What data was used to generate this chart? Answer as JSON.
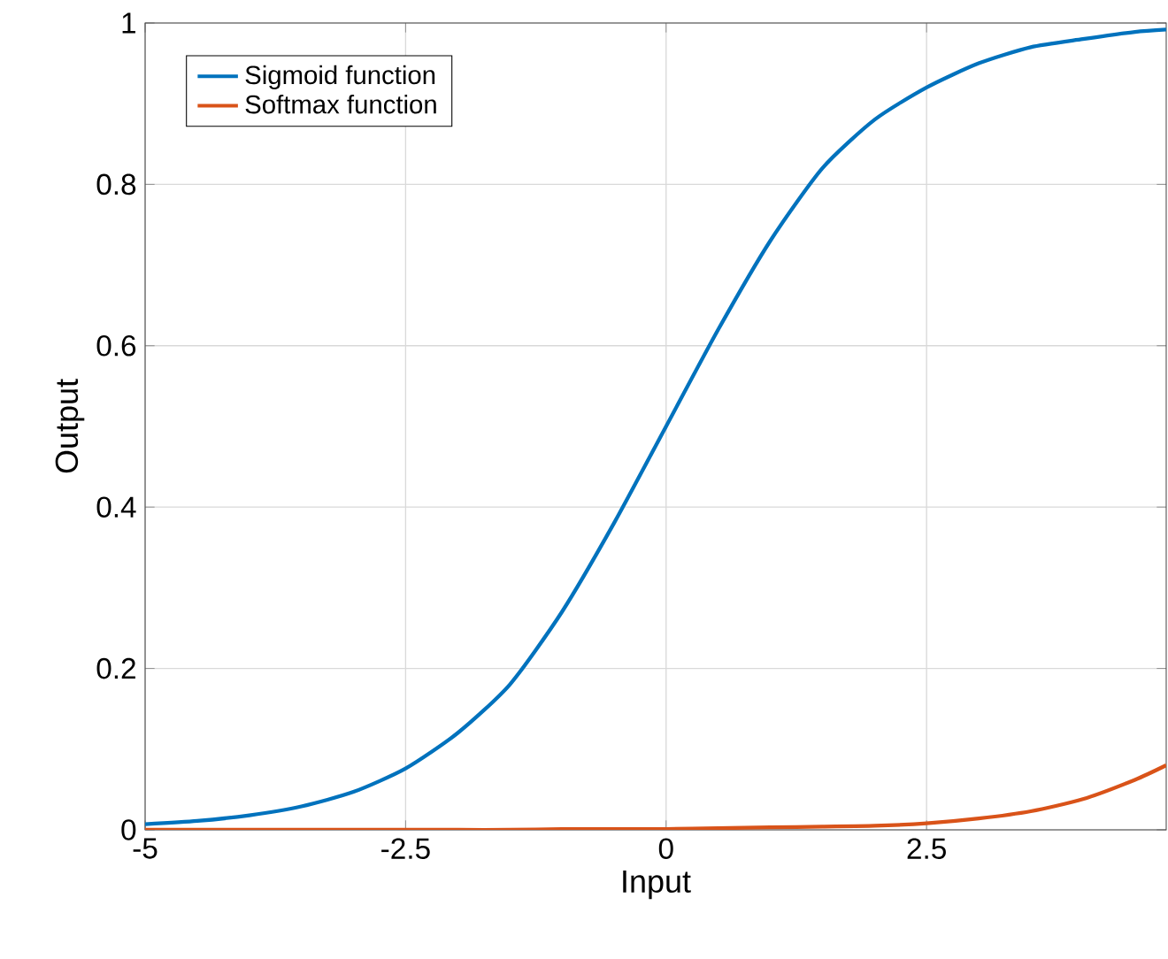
{
  "chart_data": {
    "type": "line",
    "xlabel": "Input",
    "ylabel": "Output",
    "x": [
      -5,
      -4.5,
      -4,
      -3.5,
      -3,
      -2.5,
      -2,
      -1.5,
      -1,
      -0.5,
      0,
      0.5,
      1,
      1.5,
      2,
      2.5,
      3,
      3.5,
      4,
      4.5,
      4.8
    ],
    "series": [
      {
        "name": "Sigmoid function",
        "color": "#0072bd",
        "values": [
          0.007,
          0.011,
          0.018,
          0.029,
          0.047,
          0.076,
          0.12,
          0.18,
          0.27,
          0.38,
          0.5,
          0.62,
          0.73,
          0.82,
          0.88,
          0.92,
          0.95,
          0.97,
          0.98,
          0.989,
          0.992
        ]
      },
      {
        "name": "Softmax function",
        "color": "#d95319",
        "values": [
          0,
          0,
          0,
          0,
          0,
          0,
          0,
          0,
          0.001,
          0.001,
          0.001,
          0.002,
          0.003,
          0.004,
          0.005,
          0.008,
          0.014,
          0.023,
          0.038,
          0.062,
          0.08
        ]
      }
    ],
    "xlim": [
      -5,
      4.8
    ],
    "ylim": [
      0,
      1
    ],
    "xticks": [
      -5,
      -2.5,
      0,
      2.5
    ],
    "yticks": [
      0,
      0.2,
      0.4,
      0.6,
      0.8,
      1
    ],
    "grid": true,
    "legend": "top left",
    "marker": "none",
    "line_style": "solid"
  }
}
